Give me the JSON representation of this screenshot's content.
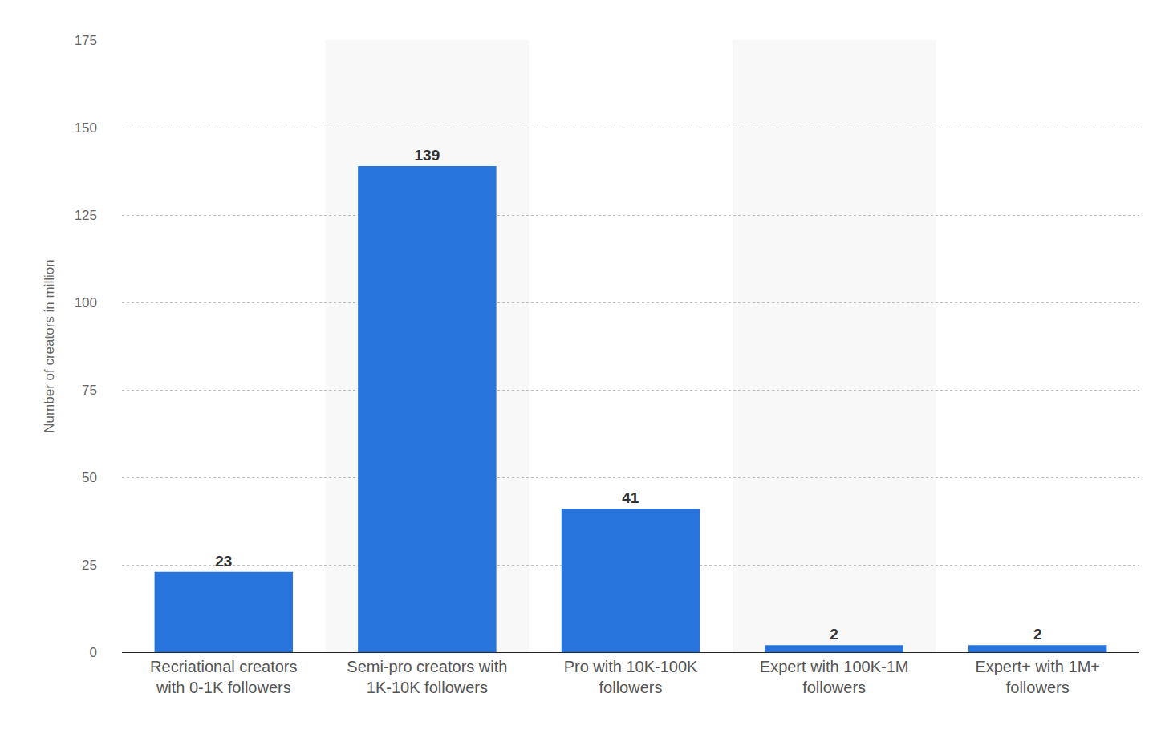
{
  "chart_data": {
    "type": "bar",
    "y_label": "Number of creators in million",
    "categories": [
      "Recriational creators with 0-1K followers",
      "Semi-pro creators with 1K-10K followers",
      "Pro with 10K-100K followers",
      "Expert with 100K-1M followers",
      "Expert+ with 1M+ followers"
    ],
    "values": [
      23,
      139,
      41,
      2,
      2
    ],
    "color": "#2874dd",
    "ylim": [
      0,
      175
    ],
    "yticks": [
      0,
      25,
      50,
      75,
      100,
      125,
      150,
      175
    ],
    "grid": true,
    "data_labels": true
  }
}
